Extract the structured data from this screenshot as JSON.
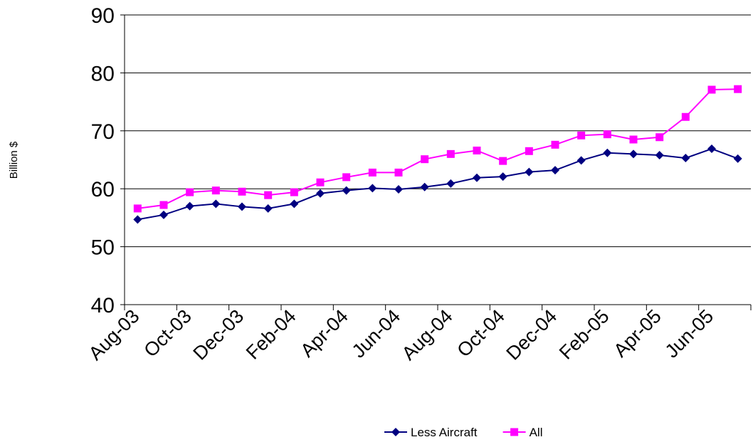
{
  "chart_data": {
    "type": "line",
    "title": "",
    "xlabel": "",
    "ylabel": "Billion $",
    "ylim": [
      40,
      90
    ],
    "yticks": [
      "40",
      "50",
      "60",
      "70",
      "80",
      "90"
    ],
    "grid": "horizontal",
    "legend_position": "bottom",
    "x": [
      "Aug-03",
      "Sep-03",
      "Oct-03",
      "Nov-03",
      "Dec-03",
      "Jan-04",
      "Feb-04",
      "Mar-04",
      "Apr-04",
      "May-04",
      "Jun-04",
      "Jul-04",
      "Aug-04",
      "Sep-04",
      "Oct-04",
      "Nov-04",
      "Dec-04",
      "Jan-05",
      "Feb-05",
      "Mar-05",
      "Apr-05",
      "May-05",
      "Jun-05",
      "Jul-05"
    ],
    "xtick_labels": [
      "Aug-03",
      "Oct-03",
      "Dec-03",
      "Feb-04",
      "Apr-04",
      "Jun-04",
      "Aug-04",
      "Oct-04",
      "Dec-04",
      "Feb-05",
      "Apr-05",
      "Jun-05"
    ],
    "series": [
      {
        "name": "Less Aircraft",
        "color": "#000080",
        "marker": "diamond",
        "values": [
          54.7,
          55.5,
          57.0,
          57.4,
          56.9,
          56.6,
          57.4,
          59.2,
          59.7,
          60.1,
          59.9,
          60.3,
          60.9,
          61.9,
          62.1,
          62.9,
          63.2,
          64.9,
          66.2,
          66.0,
          65.8,
          65.3,
          66.9,
          65.2
        ]
      },
      {
        "name": "All",
        "color": "#FF00FF",
        "marker": "square",
        "values": [
          56.6,
          57.2,
          59.4,
          59.7,
          59.5,
          58.9,
          59.4,
          61.1,
          62.0,
          62.8,
          62.8,
          65.1,
          66.0,
          66.6,
          64.8,
          66.5,
          67.6,
          69.2,
          69.4,
          68.5,
          68.9,
          72.4,
          77.1,
          77.2
        ]
      }
    ]
  }
}
